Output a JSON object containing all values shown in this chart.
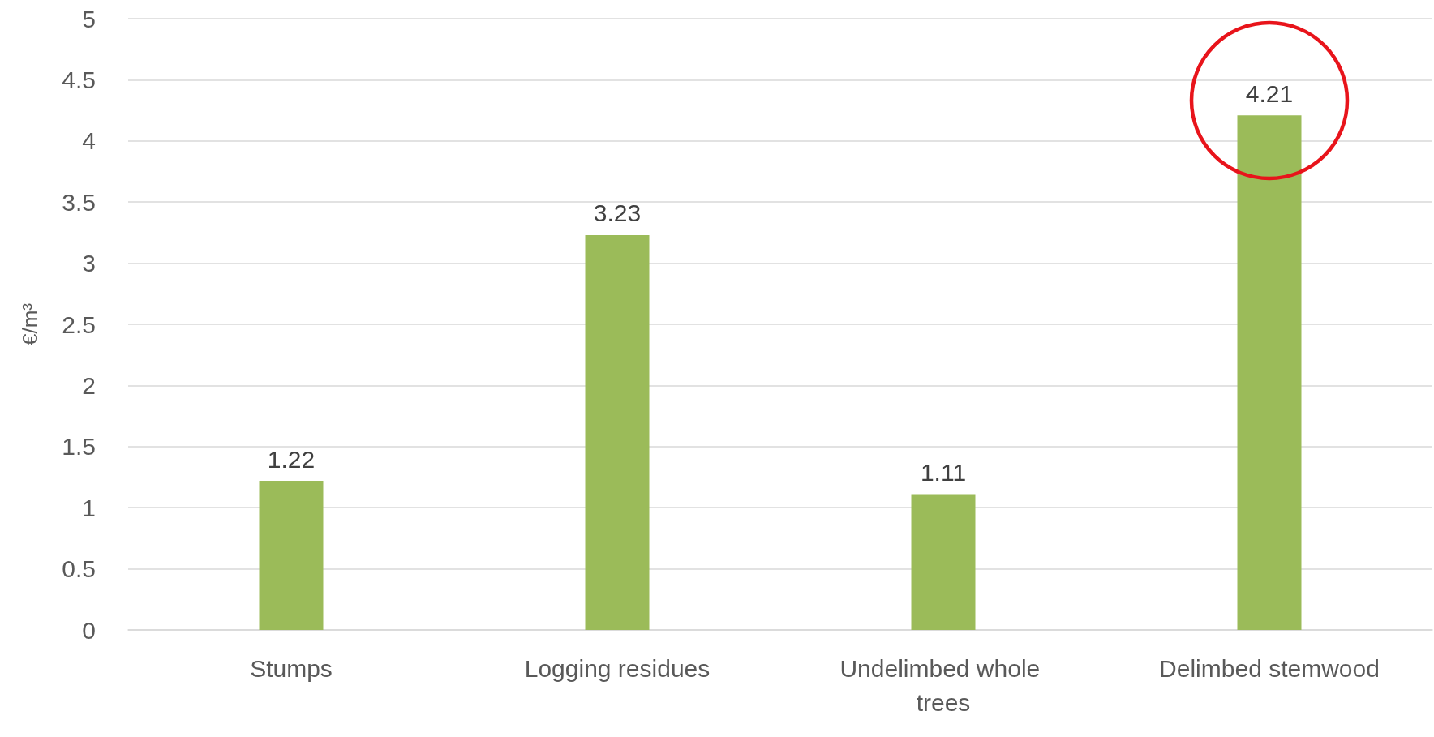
{
  "chart_data": {
    "type": "bar",
    "ylabel": "€/m³",
    "categories": [
      "Stumps",
      "Logging residues",
      "Undelimbed whole trees",
      "Delimbed stemwood"
    ],
    "values": [
      1.22,
      3.23,
      1.11,
      4.21
    ],
    "color": "#9bbb59",
    "ylim": [
      0,
      5
    ],
    "yticks": [
      0,
      0.5,
      1,
      1.5,
      2,
      2.5,
      3,
      3.5,
      4,
      4.5,
      5
    ],
    "grid": "y",
    "data_labels": true
  }
}
